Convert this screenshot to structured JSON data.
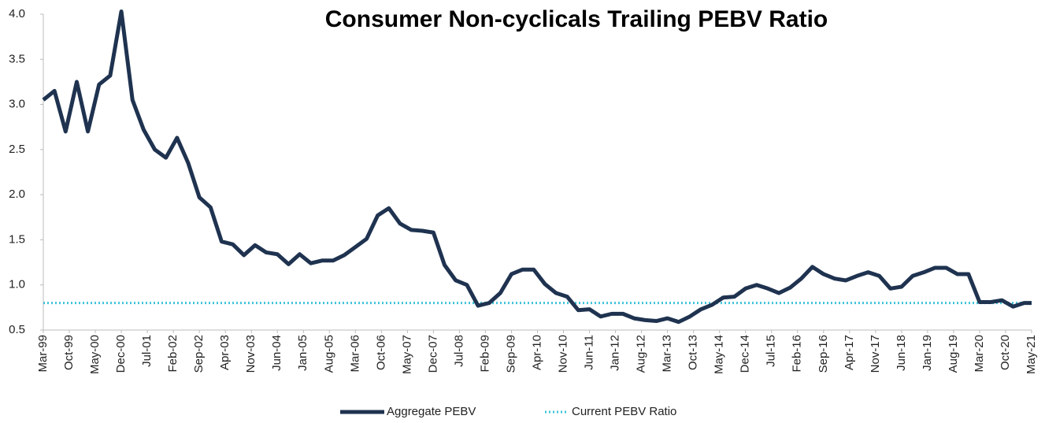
{
  "chart_data": {
    "type": "line",
    "title": "Consumer Non-cyclicals Trailing PEBV Ratio",
    "x": [
      "1999-03",
      "1999-06",
      "1999-09",
      "1999-12",
      "2000-03",
      "2000-06",
      "2000-09",
      "2000-12",
      "2001-03",
      "2001-06",
      "2001-09",
      "2001-12",
      "2002-03",
      "2002-06",
      "2002-09",
      "2002-12",
      "2003-03",
      "2003-06",
      "2003-09",
      "2003-12",
      "2004-03",
      "2004-06",
      "2004-09",
      "2004-12",
      "2005-03",
      "2005-06",
      "2005-09",
      "2005-12",
      "2006-03",
      "2006-06",
      "2006-09",
      "2006-12",
      "2007-03",
      "2007-06",
      "2007-09",
      "2007-12",
      "2008-03",
      "2008-06",
      "2008-09",
      "2008-12",
      "2009-03",
      "2009-06",
      "2009-09",
      "2009-12",
      "2010-03",
      "2010-06",
      "2010-09",
      "2010-12",
      "2011-03",
      "2011-06",
      "2011-09",
      "2011-12",
      "2012-03",
      "2012-06",
      "2012-09",
      "2012-12",
      "2013-03",
      "2013-06",
      "2013-09",
      "2013-12",
      "2014-03",
      "2014-06",
      "2014-09",
      "2014-12",
      "2015-03",
      "2015-06",
      "2015-09",
      "2015-12",
      "2016-03",
      "2016-06",
      "2016-09",
      "2016-12",
      "2017-03",
      "2017-06",
      "2017-09",
      "2017-12",
      "2018-03",
      "2018-06",
      "2018-09",
      "2018-12",
      "2019-03",
      "2019-06",
      "2019-09",
      "2019-12",
      "2020-03",
      "2020-06",
      "2020-09",
      "2020-12",
      "2021-03",
      "2021-05"
    ],
    "series": [
      {
        "name": "Aggregate PEBV",
        "color": "#1f3350",
        "values": [
          3.05,
          3.15,
          2.7,
          3.25,
          2.7,
          3.22,
          3.32,
          4.03,
          3.05,
          2.72,
          2.5,
          2.41,
          2.63,
          2.35,
          1.97,
          1.86,
          1.48,
          1.45,
          1.33,
          1.44,
          1.36,
          1.34,
          1.23,
          1.34,
          1.24,
          1.27,
          1.27,
          1.33,
          1.42,
          1.51,
          1.77,
          1.85,
          1.68,
          1.61,
          1.6,
          1.58,
          1.22,
          1.05,
          1.0,
          0.77,
          0.8,
          0.91,
          1.12,
          1.17,
          1.17,
          1.01,
          0.91,
          0.87,
          0.72,
          0.73,
          0.65,
          0.68,
          0.68,
          0.63,
          0.61,
          0.6,
          0.63,
          0.59,
          0.65,
          0.73,
          0.78,
          0.86,
          0.87,
          0.96,
          1.0,
          0.96,
          0.91,
          0.97,
          1.07,
          1.2,
          1.12,
          1.07,
          1.05,
          1.1,
          1.14,
          1.1,
          0.96,
          0.98,
          1.1,
          1.14,
          1.19,
          1.19,
          1.12,
          1.12,
          0.81,
          0.81,
          0.83,
          0.76,
          0.8,
          0.8
        ]
      }
    ],
    "reference_line": {
      "name": "Current PEBV Ratio",
      "color": "#3ec3d8",
      "value": 0.8
    },
    "xlim": [
      "1999-03",
      "2021-05"
    ],
    "xticks": [
      {
        "value": "1999-03",
        "label": "Mar-99"
      },
      {
        "value": "1999-10",
        "label": "Oct-99"
      },
      {
        "value": "2000-05",
        "label": "May-00"
      },
      {
        "value": "2000-12",
        "label": "Dec-00"
      },
      {
        "value": "2001-07",
        "label": "Jul-01"
      },
      {
        "value": "2002-02",
        "label": "Feb-02"
      },
      {
        "value": "2002-09",
        "label": "Sep-02"
      },
      {
        "value": "2003-04",
        "label": "Apr-03"
      },
      {
        "value": "2003-11",
        "label": "Nov-03"
      },
      {
        "value": "2004-06",
        "label": "Jun-04"
      },
      {
        "value": "2005-01",
        "label": "Jan-05"
      },
      {
        "value": "2005-08",
        "label": "Aug-05"
      },
      {
        "value": "2006-03",
        "label": "Mar-06"
      },
      {
        "value": "2006-10",
        "label": "Oct-06"
      },
      {
        "value": "2007-05",
        "label": "May-07"
      },
      {
        "value": "2007-12",
        "label": "Dec-07"
      },
      {
        "value": "2008-07",
        "label": "Jul-08"
      },
      {
        "value": "2009-02",
        "label": "Feb-09"
      },
      {
        "value": "2009-09",
        "label": "Sep-09"
      },
      {
        "value": "2010-04",
        "label": "Apr-10"
      },
      {
        "value": "2010-11",
        "label": "Nov-10"
      },
      {
        "value": "2011-06",
        "label": "Jun-11"
      },
      {
        "value": "2012-01",
        "label": "Jan-12"
      },
      {
        "value": "2012-08",
        "label": "Aug-12"
      },
      {
        "value": "2013-03",
        "label": "Mar-13"
      },
      {
        "value": "2013-10",
        "label": "Oct-13"
      },
      {
        "value": "2014-05",
        "label": "May-14"
      },
      {
        "value": "2014-12",
        "label": "Dec-14"
      },
      {
        "value": "2015-07",
        "label": "Jul-15"
      },
      {
        "value": "2016-02",
        "label": "Feb-16"
      },
      {
        "value": "2016-09",
        "label": "Sep-16"
      },
      {
        "value": "2017-04",
        "label": "Apr-17"
      },
      {
        "value": "2017-11",
        "label": "Nov-17"
      },
      {
        "value": "2018-06",
        "label": "Jun-18"
      },
      {
        "value": "2019-01",
        "label": "Jan-19"
      },
      {
        "value": "2019-08",
        "label": "Aug-19"
      },
      {
        "value": "2020-03",
        "label": "Mar-20"
      },
      {
        "value": "2020-10",
        "label": "Oct-20"
      },
      {
        "value": "2021-05",
        "label": "May-21"
      }
    ],
    "ylim": [
      0.5,
      4.0
    ],
    "yticks": [
      0.5,
      {
        "value": 1.0,
        "label": "1.0"
      },
      1.5,
      {
        "value": 2.0,
        "label": "2.0"
      },
      2.5,
      {
        "value": 3.0,
        "label": "3.0"
      },
      3.5,
      {
        "value": 4.0,
        "label": "4.0"
      }
    ],
    "grid": false,
    "legend": "bottom"
  }
}
